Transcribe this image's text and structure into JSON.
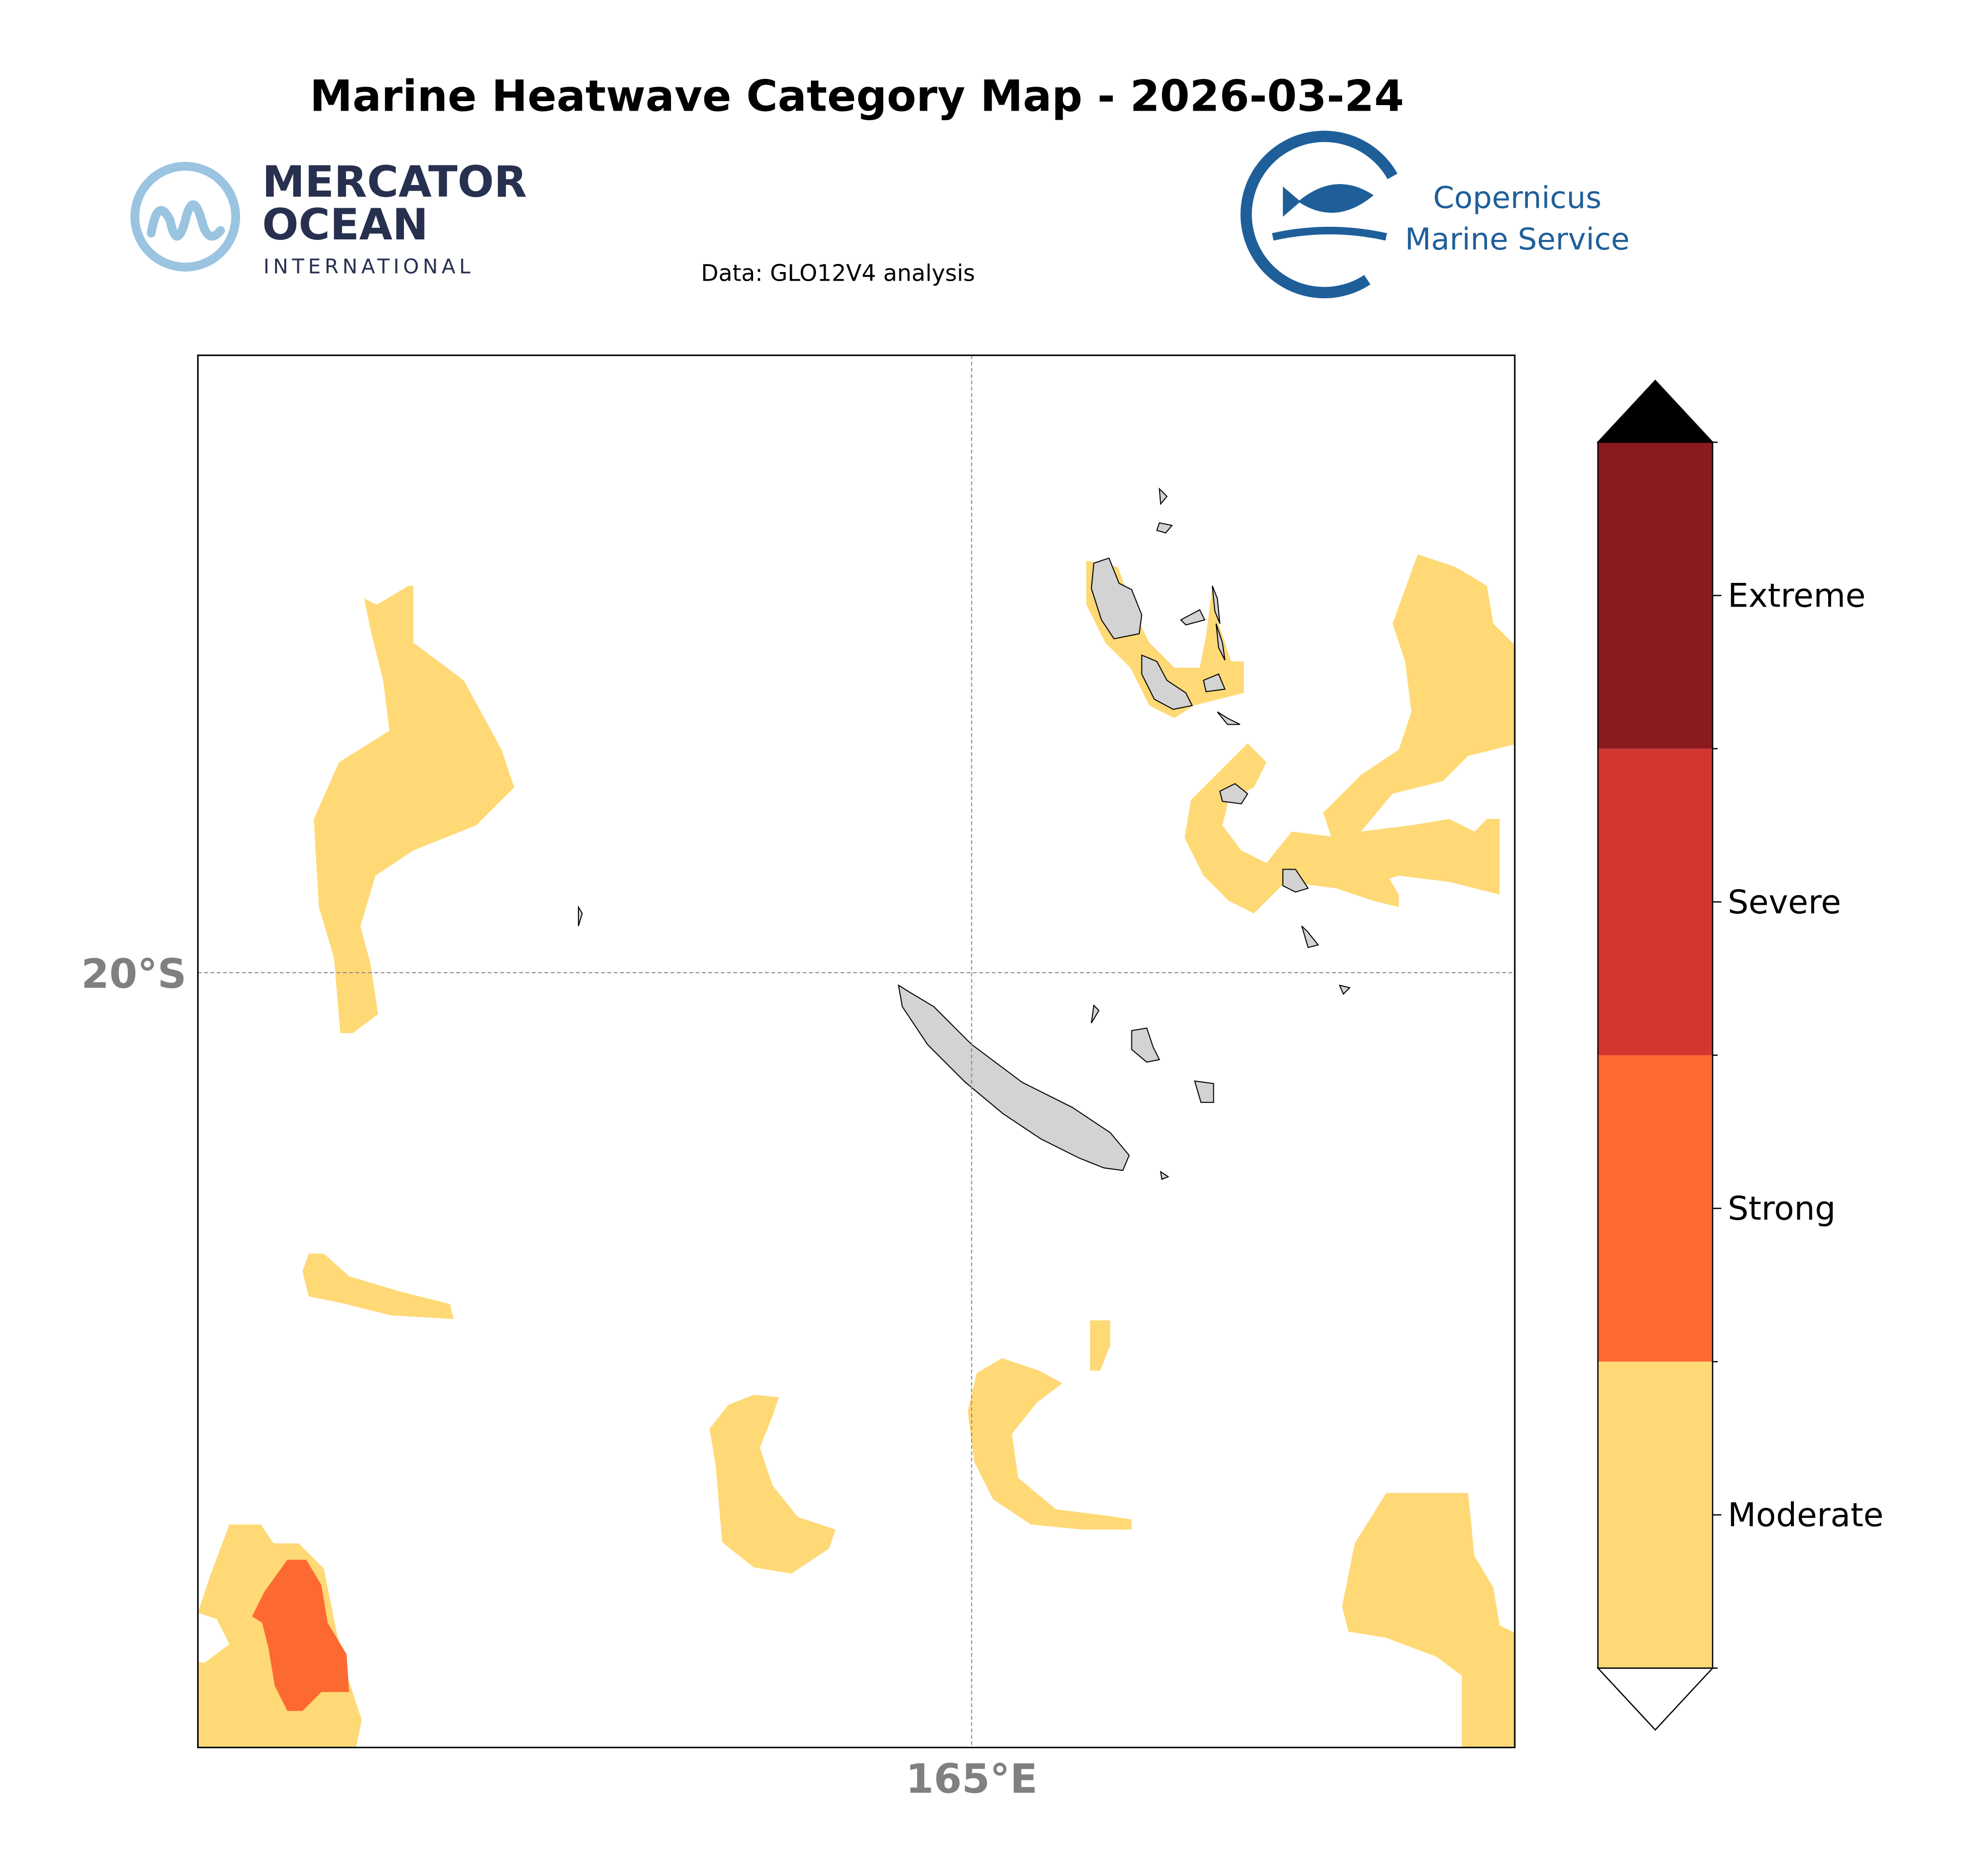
{
  "title": "Marine Heatwave Category Map - 2026-03-24",
  "source": "Data: GLO12V4 analysis",
  "logos": {
    "mercator": [
      "MERCATOR",
      "OCEAN",
      "INTERNATIONAL"
    ],
    "copernicus": [
      "Copernicus",
      "Marine Service"
    ]
  },
  "map": {
    "lat_label": "20°S",
    "lon_label": "165°E"
  },
  "legend": {
    "categories": [
      {
        "name": "Moderate",
        "color": "#fed976"
      },
      {
        "name": "Strong",
        "color": "#fd6a31"
      },
      {
        "name": "Severe",
        "color": "#d1372e"
      },
      {
        "name": "Extreme",
        "color": "#8b1a1e"
      }
    ],
    "over_color": "#000000",
    "under_color": "#ffffff"
  }
}
